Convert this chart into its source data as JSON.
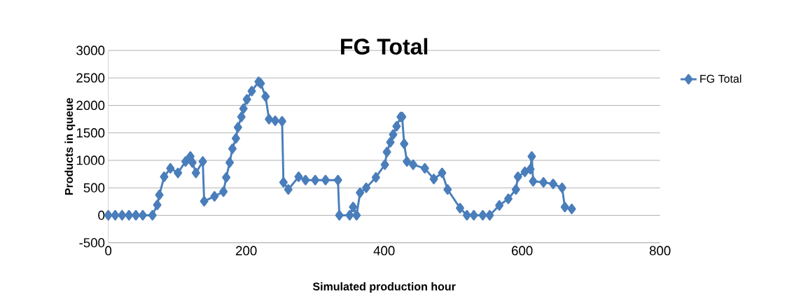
{
  "chart_data": {
    "type": "line",
    "title": "FG Total",
    "xlabel": "Simulated production hour",
    "ylabel": "Products in queue",
    "series": [
      {
        "name": "FG Total",
        "color": "#4a7ebb",
        "x": [
          0,
          10,
          20,
          30,
          40,
          50,
          64,
          71,
          74,
          81,
          90,
          101,
          112,
          119,
          122,
          127,
          137,
          139,
          154,
          167,
          171,
          176,
          180,
          185,
          188,
          193,
          196,
          201,
          208,
          218,
          221,
          228,
          233,
          242,
          252,
          254,
          261,
          276,
          286,
          300,
          315,
          333,
          335,
          350,
          355,
          360,
          365,
          374,
          388,
          401,
          404,
          409,
          413,
          418,
          424,
          426,
          429,
          433,
          442,
          459,
          472,
          484,
          492,
          510,
          520,
          530,
          543,
          553,
          567,
          580,
          591,
          594,
          604,
          612,
          614,
          616,
          631,
          645,
          658,
          662,
          672
        ],
        "values": [
          0,
          0,
          0,
          0,
          0,
          0,
          0,
          190,
          370,
          700,
          855,
          770,
          980,
          1070,
          960,
          770,
          980,
          255,
          345,
          430,
          690,
          960,
          1210,
          1400,
          1600,
          1790,
          1940,
          2110,
          2260,
          2430,
          2400,
          2160,
          1750,
          1720,
          1710,
          600,
          470,
          700,
          640,
          640,
          640,
          640,
          0,
          0,
          150,
          0,
          410,
          500,
          690,
          920,
          1150,
          1330,
          1470,
          1620,
          1790,
          1790,
          1300,
          980,
          920,
          855,
          660,
          770,
          470,
          130,
          0,
          0,
          0,
          0,
          180,
          300,
          470,
          700,
          790,
          840,
          1070,
          620,
          600,
          570,
          500,
          150,
          115
        ]
      }
    ],
    "xlim": [
      0,
      800
    ],
    "xticks": [
      0,
      200,
      400,
      600,
      800
    ],
    "ylim": [
      -500,
      3000
    ],
    "yticks": [
      -500,
      0,
      500,
      1000,
      1500,
      2000,
      2500,
      3000
    ],
    "grid": "y",
    "legend": "right",
    "marker": "diamond",
    "line_style": "solid"
  }
}
